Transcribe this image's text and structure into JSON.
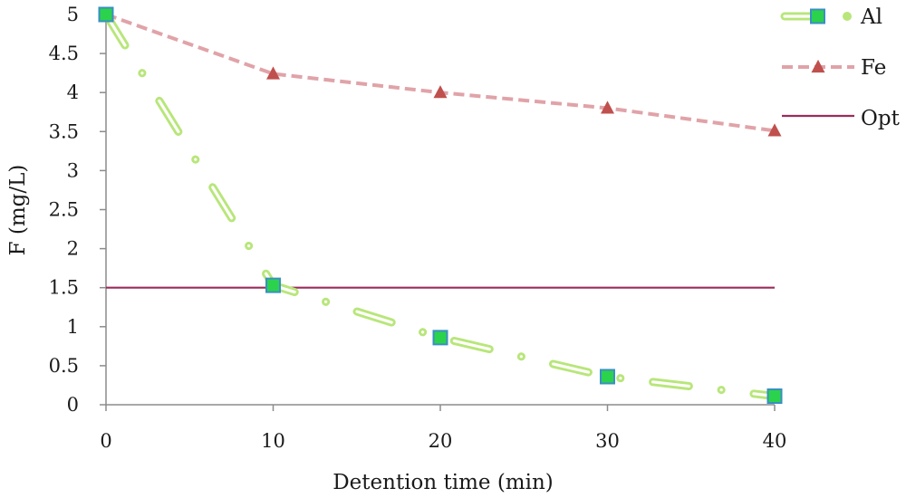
{
  "chart_data": {
    "type": "line",
    "title": "",
    "xlabel": "Detention time (min)",
    "ylabel": "F (mg/L)",
    "xlim": [
      0,
      40
    ],
    "ylim": [
      0,
      5
    ],
    "x_ticks": [
      "0",
      "10",
      "20",
      "30",
      "40"
    ],
    "y_ticks": [
      "0",
      "0.5",
      "1",
      "1.5",
      "2",
      "2.5",
      "3",
      "3.5",
      "4",
      "4.5",
      "5"
    ],
    "grid": false,
    "legend_position": "top-right",
    "series": [
      {
        "name": "Al",
        "x": [
          0,
          10,
          20,
          30,
          40
        ],
        "values": [
          5.0,
          1.53,
          0.86,
          0.36,
          0.11
        ],
        "color": "#b8e67a",
        "marker": "square",
        "marker_color": "#2bd24c",
        "marker_edge": "#3a8fc2",
        "style": "dash-dot"
      },
      {
        "name": "Fe",
        "x": [
          0,
          10,
          20,
          30,
          40
        ],
        "values": [
          5.0,
          4.24,
          4.0,
          3.8,
          3.51
        ],
        "color": "#e0a3a8",
        "marker": "triangle",
        "marker_color": "#c0504d",
        "style": "dashed"
      },
      {
        "name": "Opt",
        "x": [
          0,
          40
        ],
        "values": [
          1.5,
          1.5
        ],
        "color": "#9b2c5c",
        "style": "solid"
      }
    ]
  }
}
